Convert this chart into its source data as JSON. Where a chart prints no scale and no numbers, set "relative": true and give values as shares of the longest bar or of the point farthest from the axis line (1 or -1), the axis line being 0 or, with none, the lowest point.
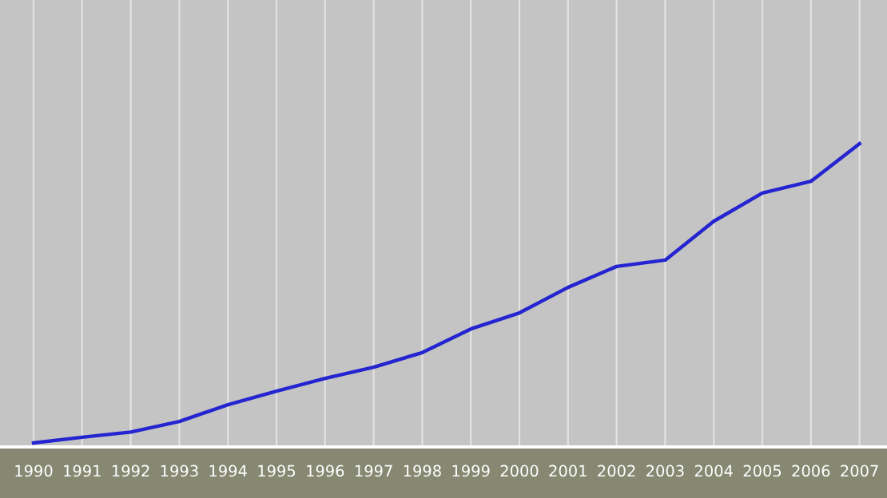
{
  "chart_data": {
    "type": "line",
    "relative": true,
    "grid": "x",
    "categories": [
      "1990",
      "1991",
      "1992",
      "1993",
      "1994",
      "1995",
      "1996",
      "1997",
      "1998",
      "1999",
      "2000",
      "2001",
      "2002",
      "2003",
      "2004",
      "2005",
      "2006",
      "2007"
    ],
    "series": [
      {
        "color": "#2424d0",
        "values": [
          0.013,
          0.032,
          0.049,
          0.084,
          0.139,
          0.184,
          0.226,
          0.263,
          0.311,
          0.389,
          0.442,
          0.526,
          0.595,
          0.616,
          0.744,
          0.837,
          0.876,
          1
        ]
      }
    ]
  }
}
